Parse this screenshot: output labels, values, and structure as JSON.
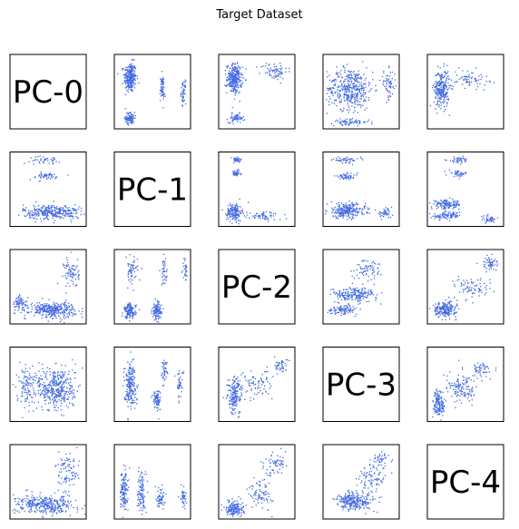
{
  "chart_data": {
    "type": "scatter",
    "title": "Target Dataset",
    "matrix_labels": [
      "PC-0",
      "PC-1",
      "PC-2",
      "PC-3",
      "PC-4"
    ],
    "point_color": "#4169e1",
    "axes_ticks": "hidden",
    "diagonal": "variable names",
    "off_diagonal_clusters": {
      "0,1": [
        [
          0.2,
          0.7,
          0.08,
          0.2,
          260
        ],
        [
          0.2,
          0.15,
          0.06,
          0.08,
          90
        ],
        [
          0.62,
          0.55,
          0.03,
          0.18,
          60
        ],
        [
          0.9,
          0.5,
          0.03,
          0.15,
          50
        ]
      ],
      "0,2": [
        [
          0.2,
          0.68,
          0.1,
          0.2,
          280
        ],
        [
          0.22,
          0.15,
          0.1,
          0.06,
          60
        ],
        [
          0.72,
          0.78,
          0.18,
          0.12,
          70
        ]
      ],
      "0,3": [
        [
          0.35,
          0.55,
          0.3,
          0.28,
          420
        ],
        [
          0.35,
          0.1,
          0.25,
          0.04,
          70
        ],
        [
          0.85,
          0.6,
          0.1,
          0.2,
          60
        ]
      ],
      "0,4": [
        [
          0.18,
          0.55,
          0.1,
          0.25,
          260
        ],
        [
          0.55,
          0.68,
          0.25,
          0.12,
          70
        ]
      ],
      "1,0": [
        [
          0.55,
          0.2,
          0.38,
          0.1,
          320
        ],
        [
          0.45,
          0.68,
          0.22,
          0.05,
          50
        ],
        [
          0.45,
          0.9,
          0.2,
          0.05,
          40
        ]
      ],
      "1,2": [
        [
          0.2,
          0.2,
          0.1,
          0.12,
          160
        ],
        [
          0.22,
          0.72,
          0.06,
          0.04,
          40
        ],
        [
          0.22,
          0.9,
          0.08,
          0.04,
          40
        ],
        [
          0.6,
          0.15,
          0.22,
          0.06,
          60
        ]
      ],
      "1,3": [
        [
          0.3,
          0.22,
          0.25,
          0.1,
          260
        ],
        [
          0.3,
          0.68,
          0.15,
          0.04,
          50
        ],
        [
          0.3,
          0.9,
          0.18,
          0.04,
          50
        ],
        [
          0.8,
          0.18,
          0.1,
          0.06,
          40
        ]
      ],
      "1,4": [
        [
          0.25,
          0.3,
          0.2,
          0.06,
          140
        ],
        [
          0.25,
          0.15,
          0.18,
          0.05,
          90
        ],
        [
          0.4,
          0.72,
          0.12,
          0.04,
          40
        ],
        [
          0.4,
          0.9,
          0.14,
          0.04,
          40
        ],
        [
          0.8,
          0.1,
          0.1,
          0.05,
          40
        ]
      ],
      "2,0": [
        [
          0.55,
          0.2,
          0.3,
          0.1,
          320
        ],
        [
          0.12,
          0.28,
          0.1,
          0.1,
          70
        ],
        [
          0.8,
          0.7,
          0.1,
          0.2,
          80
        ]
      ],
      "2,1": [
        [
          0.2,
          0.18,
          0.08,
          0.1,
          130
        ],
        [
          0.55,
          0.18,
          0.06,
          0.12,
          110
        ],
        [
          0.22,
          0.72,
          0.08,
          0.18,
          60
        ],
        [
          0.65,
          0.7,
          0.04,
          0.18,
          40
        ],
        [
          0.92,
          0.75,
          0.03,
          0.15,
          30
        ]
      ],
      "2,3": [
        [
          0.4,
          0.4,
          0.3,
          0.1,
          200
        ],
        [
          0.25,
          0.2,
          0.2,
          0.06,
          100
        ],
        [
          0.6,
          0.75,
          0.2,
          0.15,
          70
        ]
      ],
      "2,4": [
        [
          0.22,
          0.2,
          0.15,
          0.1,
          200
        ],
        [
          0.6,
          0.5,
          0.25,
          0.15,
          80
        ],
        [
          0.8,
          0.82,
          0.1,
          0.1,
          50
        ]
      ],
      "3,0": [
        [
          0.6,
          0.45,
          0.25,
          0.3,
          400
        ],
        [
          0.2,
          0.5,
          0.12,
          0.25,
          100
        ]
      ],
      "3,1": [
        [
          0.2,
          0.5,
          0.08,
          0.3,
          200
        ],
        [
          0.55,
          0.3,
          0.05,
          0.15,
          80
        ],
        [
          0.65,
          0.7,
          0.04,
          0.15,
          40
        ],
        [
          0.85,
          0.5,
          0.05,
          0.2,
          40
        ]
      ],
      "3,2": [
        [
          0.2,
          0.35,
          0.1,
          0.25,
          160
        ],
        [
          0.45,
          0.5,
          0.25,
          0.2,
          90
        ],
        [
          0.8,
          0.75,
          0.1,
          0.1,
          40
        ]
      ],
      "3,4": [
        [
          0.15,
          0.25,
          0.08,
          0.2,
          140
        ],
        [
          0.45,
          0.45,
          0.2,
          0.2,
          130
        ],
        [
          0.7,
          0.7,
          0.12,
          0.1,
          50
        ]
      ],
      "4,0": [
        [
          0.45,
          0.2,
          0.4,
          0.12,
          360
        ],
        [
          0.75,
          0.62,
          0.15,
          0.25,
          90
        ]
      ],
      "4,1": [
        [
          0.12,
          0.4,
          0.05,
          0.3,
          130
        ],
        [
          0.35,
          0.35,
          0.05,
          0.3,
          110
        ],
        [
          0.6,
          0.3,
          0.05,
          0.15,
          60
        ],
        [
          0.9,
          0.3,
          0.04,
          0.15,
          40
        ]
      ],
      "4,2": [
        [
          0.2,
          0.15,
          0.12,
          0.1,
          160
        ],
        [
          0.55,
          0.35,
          0.15,
          0.2,
          80
        ],
        [
          0.75,
          0.75,
          0.15,
          0.15,
          60
        ]
      ],
      "4,3": [
        [
          0.4,
          0.25,
          0.25,
          0.12,
          260
        ],
        [
          0.65,
          0.55,
          0.2,
          0.2,
          90
        ],
        [
          0.75,
          0.8,
          0.1,
          0.1,
          40
        ]
      ]
    }
  }
}
